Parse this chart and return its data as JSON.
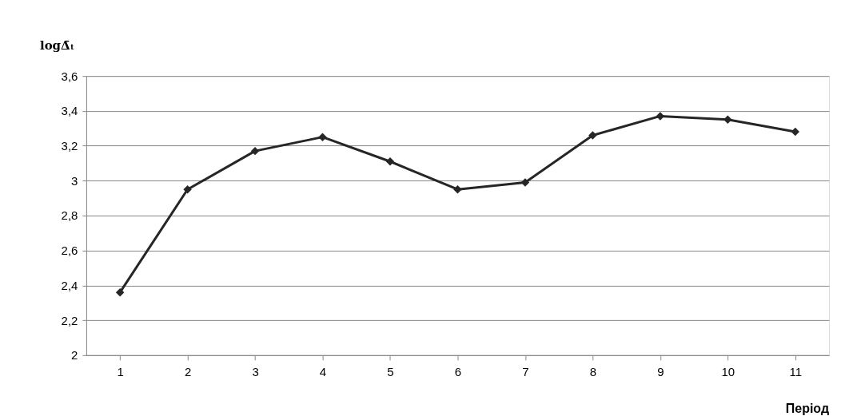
{
  "chart_data": {
    "type": "line",
    "xlabel": "Період",
    "ylabel": "logΔ̄ₜ",
    "categories": [
      "1",
      "2",
      "3",
      "4",
      "5",
      "6",
      "7",
      "8",
      "9",
      "10",
      "11"
    ],
    "series": [
      {
        "color": "#262626",
        "values": [
          2.36,
          2.95,
          3.17,
          3.25,
          3.11,
          2.95,
          2.99,
          3.26,
          3.37,
          3.35,
          3.28
        ]
      }
    ],
    "ylim": [
      2,
      3.6
    ],
    "yticks": [
      2,
      {
        "value": 2.2,
        "label": "2,2"
      },
      {
        "value": 2.4,
        "label": "2,4"
      },
      {
        "value": 2.6,
        "label": "2,6"
      },
      {
        "value": 2.8,
        "label": "2,8"
      },
      3,
      {
        "value": 3.2,
        "label": "3,2"
      },
      {
        "value": 3.4,
        "label": "3,4"
      },
      {
        "value": 3.6,
        "label": "3,6"
      }
    ],
    "grid": "y",
    "marker": "diamond",
    "line_style": "solid"
  }
}
